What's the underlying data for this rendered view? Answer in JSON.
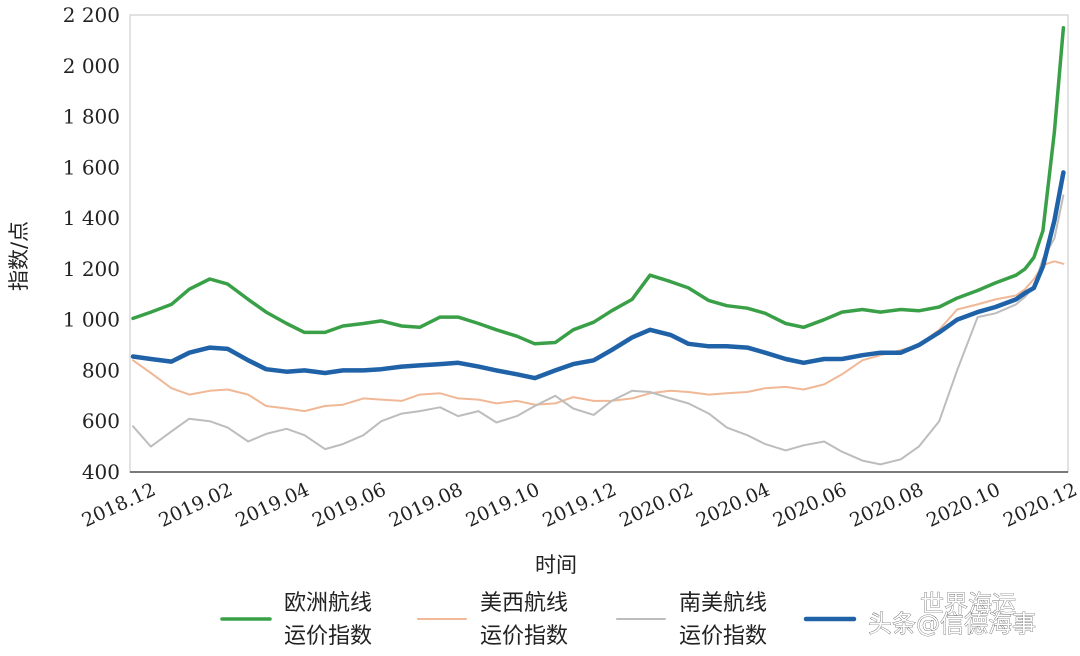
{
  "chart_data": {
    "type": "line",
    "title": "",
    "xlabel": "时间",
    "ylabel": "指数/点",
    "ylim": [
      400,
      2200
    ],
    "yticks": [
      "400",
      "600",
      "800",
      "1 000",
      "1 200",
      "1 400",
      "1 600",
      "1 800",
      "2 000",
      "2 200"
    ],
    "xticks": [
      "2018.12",
      "2019.02",
      "2019.04",
      "2019.06",
      "2019.08",
      "2019.10",
      "2019.12",
      "2020.02",
      "2020.04",
      "2020.06",
      "2020.08",
      "2020.10",
      "2020.12"
    ],
    "grid": false,
    "legend_position": "bottom",
    "series": [
      {
        "name": "欧洲航线运价指数",
        "name_lines": [
          "欧洲航线",
          "运价指数"
        ],
        "color": "#3aa048",
        "width": 3.5,
        "x": [
          "2018.12",
          "2018.12.15",
          "2019.01",
          "2019.01.15",
          "2019.02",
          "2019.02.15",
          "2019.03",
          "2019.03.15",
          "2019.04",
          "2019.04.15",
          "2019.05",
          "2019.05.15",
          "2019.06",
          "2019.06.15",
          "2019.07",
          "2019.07.15",
          "2019.08",
          "2019.08.15",
          "2019.09",
          "2019.09.15",
          "2019.10",
          "2019.10.15",
          "2019.11",
          "2019.11.15",
          "2019.12",
          "2019.12.15",
          "2020.01",
          "2020.01.15",
          "2020.02",
          "2020.02.15",
          "2020.03",
          "2020.03.15",
          "2020.04",
          "2020.04.15",
          "2020.05",
          "2020.05.15",
          "2020.06",
          "2020.06.15",
          "2020.07",
          "2020.07.15",
          "2020.08",
          "2020.08.15",
          "2020.09",
          "2020.09.15",
          "2020.10",
          "2020.10.15",
          "2020.11",
          "2020.11.08",
          "2020.11.15",
          "2020.11.22",
          "2020.12",
          "2020.12.08"
        ],
        "values": [
          1005,
          1030,
          1060,
          1120,
          1160,
          1140,
          1080,
          1030,
          985,
          950,
          950,
          975,
          985,
          995,
          975,
          970,
          1010,
          1010,
          985,
          960,
          935,
          905,
          910,
          960,
          990,
          1035,
          1080,
          1175,
          1150,
          1125,
          1075,
          1055,
          1045,
          1025,
          985,
          970,
          1000,
          1030,
          1040,
          1030,
          1040,
          1035,
          1050,
          1085,
          1115,
          1145,
          1175,
          1200,
          1245,
          1350,
          1740,
          2150
        ]
      },
      {
        "name": "美西航线运价指数",
        "name_lines": [
          "美西航线",
          "运价指数"
        ],
        "color": "#f0b896",
        "width": 2,
        "x": [
          "2018.12",
          "2018.12.15",
          "2019.01",
          "2019.01.15",
          "2019.02",
          "2019.02.15",
          "2019.03",
          "2019.03.15",
          "2019.04",
          "2019.04.15",
          "2019.05",
          "2019.05.15",
          "2019.06",
          "2019.06.15",
          "2019.07",
          "2019.07.15",
          "2019.08",
          "2019.08.15",
          "2019.09",
          "2019.09.15",
          "2019.10",
          "2019.10.15",
          "2019.11",
          "2019.11.15",
          "2019.12",
          "2019.12.15",
          "2020.01",
          "2020.01.15",
          "2020.02",
          "2020.02.15",
          "2020.03",
          "2020.03.15",
          "2020.04",
          "2020.04.15",
          "2020.05",
          "2020.05.15",
          "2020.06",
          "2020.06.15",
          "2020.07",
          "2020.07.15",
          "2020.08",
          "2020.08.15",
          "2020.09",
          "2020.09.15",
          "2020.10",
          "2020.10.15",
          "2020.11",
          "2020.11.08",
          "2020.11.15",
          "2020.11.22",
          "2020.12",
          "2020.12.08"
        ],
        "values": [
          840,
          790,
          730,
          705,
          720,
          725,
          705,
          660,
          650,
          640,
          660,
          665,
          690,
          685,
          680,
          705,
          710,
          690,
          685,
          670,
          680,
          665,
          670,
          695,
          680,
          680,
          690,
          710,
          720,
          715,
          705,
          710,
          715,
          730,
          735,
          725,
          745,
          785,
          840,
          860,
          880,
          900,
          960,
          1040,
          1060,
          1080,
          1095,
          1120,
          1160,
          1215,
          1230,
          1220
        ]
      },
      {
        "name": "南美航线运价指数",
        "name_lines": [
          "南美航线",
          "运价指数"
        ],
        "color": "#bdbdbd",
        "width": 2,
        "x": [
          "2018.12",
          "2018.12.15",
          "2019.01",
          "2019.01.15",
          "2019.02",
          "2019.02.15",
          "2019.03",
          "2019.03.15",
          "2019.04",
          "2019.04.15",
          "2019.05",
          "2019.05.15",
          "2019.06",
          "2019.06.15",
          "2019.07",
          "2019.07.15",
          "2019.08",
          "2019.08.15",
          "2019.09",
          "2019.09.15",
          "2019.10",
          "2019.10.15",
          "2019.11",
          "2019.11.15",
          "2019.12",
          "2019.12.15",
          "2020.01",
          "2020.01.15",
          "2020.02",
          "2020.02.15",
          "2020.03",
          "2020.03.15",
          "2020.04",
          "2020.04.15",
          "2020.05",
          "2020.05.15",
          "2020.06",
          "2020.06.15",
          "2020.07",
          "2020.07.15",
          "2020.08",
          "2020.08.15",
          "2020.09",
          "2020.09.15",
          "2020.10",
          "2020.10.15",
          "2020.11",
          "2020.11.08",
          "2020.11.15",
          "2020.11.22",
          "2020.12",
          "2020.12.08"
        ],
        "values": [
          580,
          500,
          560,
          610,
          600,
          575,
          520,
          550,
          570,
          545,
          490,
          510,
          545,
          600,
          630,
          640,
          655,
          620,
          640,
          595,
          620,
          660,
          700,
          650,
          625,
          680,
          720,
          715,
          690,
          670,
          630,
          575,
          545,
          510,
          485,
          505,
          520,
          480,
          445,
          430,
          450,
          500,
          600,
          800,
          1010,
          1025,
          1060,
          1090,
          1130,
          1240,
          1320,
          1490
        ]
      },
      {
        "name": "",
        "color": "#2062a8",
        "width": 4.5,
        "x": [
          "2018.12",
          "2018.12.15",
          "2019.01",
          "2019.01.15",
          "2019.02",
          "2019.02.15",
          "2019.03",
          "2019.03.15",
          "2019.04",
          "2019.04.15",
          "2019.05",
          "2019.05.15",
          "2019.06",
          "2019.06.15",
          "2019.07",
          "2019.07.15",
          "2019.08",
          "2019.08.15",
          "2019.09",
          "2019.09.15",
          "2019.10",
          "2019.10.15",
          "2019.11",
          "2019.11.15",
          "2019.12",
          "2019.12.15",
          "2020.01",
          "2020.01.15",
          "2020.02",
          "2020.02.15",
          "2020.03",
          "2020.03.15",
          "2020.04",
          "2020.04.15",
          "2020.05",
          "2020.05.15",
          "2020.06",
          "2020.06.15",
          "2020.07",
          "2020.07.15",
          "2020.08",
          "2020.08.15",
          "2020.09",
          "2020.09.15",
          "2020.10",
          "2020.10.15",
          "2020.11",
          "2020.11.08",
          "2020.11.15",
          "2020.11.22",
          "2020.12",
          "2020.12.08"
        ],
        "values": [
          855,
          845,
          835,
          870,
          890,
          885,
          840,
          805,
          795,
          800,
          790,
          800,
          800,
          805,
          815,
          820,
          825,
          830,
          815,
          800,
          785,
          770,
          800,
          825,
          840,
          880,
          930,
          960,
          940,
          905,
          895,
          895,
          890,
          870,
          845,
          830,
          845,
          845,
          860,
          870,
          870,
          900,
          950,
          1000,
          1030,
          1050,
          1080,
          1105,
          1125,
          1210,
          1390,
          1580
        ]
      }
    ]
  },
  "watermark": {
    "line1": "世界海运",
    "line2": "头条@信德海事"
  }
}
